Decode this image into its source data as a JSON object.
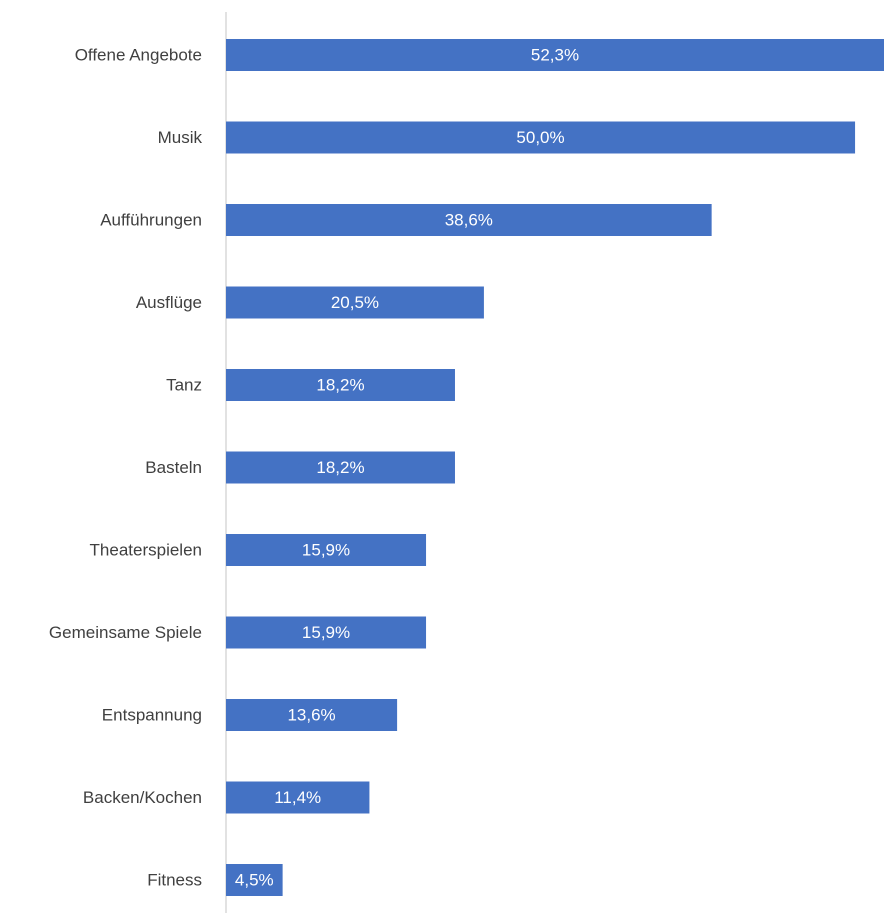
{
  "chart_data": {
    "type": "bar",
    "orientation": "horizontal",
    "categories": [
      "Offene Angebote",
      "Musik",
      "Aufführungen",
      "Ausflüge",
      "Tanz",
      "Basteln",
      "Theaterspielen",
      "Gemeinsame Spiele",
      "Entspannung",
      "Backen/Kochen",
      "Fitness"
    ],
    "values": [
      52.3,
      50.0,
      38.6,
      20.5,
      18.2,
      18.2,
      15.9,
      15.9,
      13.6,
      11.4,
      4.5
    ],
    "value_labels": [
      "52,3%",
      "50,0%",
      "38,6%",
      "20,5%",
      "18,2%",
      "18,2%",
      "15,9%",
      "15,9%",
      "13,6%",
      "11,4%",
      "4,5%"
    ],
    "title": "",
    "xlabel": "",
    "ylabel": "",
    "xlim": [
      0,
      52.3
    ],
    "grid": false,
    "legend": "none",
    "bar_color": "#4472c4"
  }
}
